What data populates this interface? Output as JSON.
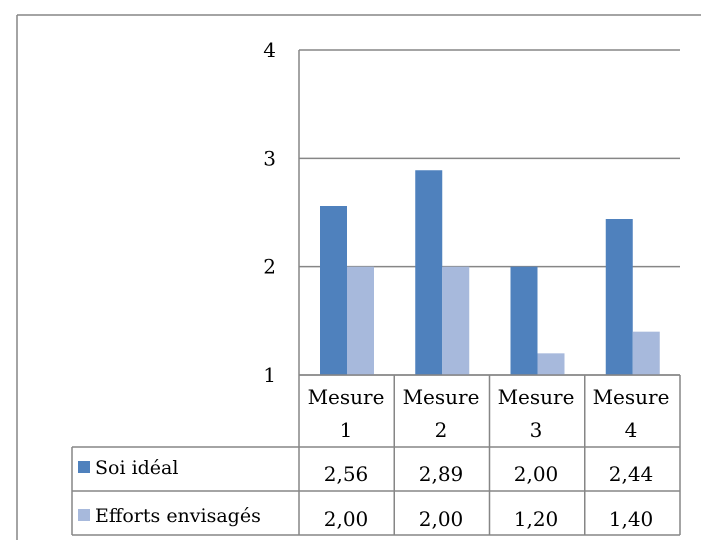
{
  "chart_data": {
    "type": "bar",
    "categories": [
      [
        "Mesure",
        "1"
      ],
      [
        "Mesure",
        "2"
      ],
      [
        "Mesure",
        "3"
      ],
      [
        "Mesure",
        "4"
      ]
    ],
    "series": [
      {
        "name": "Soi idéal",
        "values": [
          2.56,
          2.89,
          2.0,
          2.44
        ],
        "labels": [
          "2,56",
          "2,89",
          "2,00",
          "2,44"
        ],
        "color": "#4f81bd"
      },
      {
        "name": "Efforts envisagés",
        "values": [
          2.0,
          2.0,
          1.2,
          1.4
        ],
        "labels": [
          "2,00",
          "2,00",
          "1,20",
          "1,40"
        ],
        "color": "#a7b9dc"
      }
    ],
    "yticks": [
      "1",
      "2",
      "3",
      "4"
    ],
    "ylim": [
      1,
      4
    ],
    "grid": true,
    "gridline_color": "#868686",
    "legend": "data-table"
  }
}
